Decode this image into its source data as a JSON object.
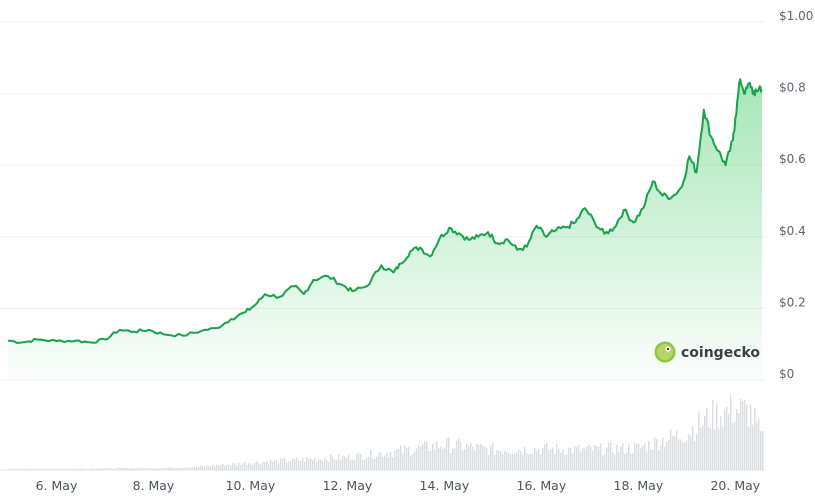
{
  "chart_data": {
    "type": "area",
    "title": "",
    "xlabel": "",
    "ylabel": "",
    "x_ticks": [
      "6. May",
      "8. May",
      "10. May",
      "12. May",
      "14. May",
      "16. May",
      "18. May",
      "20. May"
    ],
    "y_ticks": [
      "$0",
      "$0.2",
      "$0.4",
      "$0.6",
      "$0.8",
      "$1.00"
    ],
    "ylim": [
      0,
      1.0
    ],
    "x_start_day": 5,
    "x_end_day": 20.55,
    "grid": true,
    "colors": {
      "line": "#16a34a",
      "fill_top": "#5ed27d",
      "volume": "#d9dde2"
    },
    "price": [
      [
        5.0,
        0.11
      ],
      [
        5.3,
        0.105
      ],
      [
        5.6,
        0.113
      ],
      [
        6.0,
        0.109
      ],
      [
        6.4,
        0.11
      ],
      [
        6.7,
        0.105
      ],
      [
        7.0,
        0.113
      ],
      [
        7.3,
        0.14
      ],
      [
        7.6,
        0.135
      ],
      [
        7.9,
        0.14
      ],
      [
        8.2,
        0.128
      ],
      [
        8.6,
        0.124
      ],
      [
        9.0,
        0.138
      ],
      [
        9.3,
        0.145
      ],
      [
        9.6,
        0.17
      ],
      [
        9.9,
        0.19
      ],
      [
        10.1,
        0.21
      ],
      [
        10.3,
        0.24
      ],
      [
        10.6,
        0.232
      ],
      [
        10.9,
        0.262
      ],
      [
        11.1,
        0.24
      ],
      [
        11.3,
        0.28
      ],
      [
        11.6,
        0.29
      ],
      [
        11.9,
        0.265
      ],
      [
        12.1,
        0.248
      ],
      [
        12.4,
        0.262
      ],
      [
        12.7,
        0.32
      ],
      [
        12.95,
        0.3
      ],
      [
        13.1,
        0.325
      ],
      [
        13.3,
        0.36
      ],
      [
        13.5,
        0.37
      ],
      [
        13.7,
        0.345
      ],
      [
        13.9,
        0.395
      ],
      [
        14.1,
        0.425
      ],
      [
        14.3,
        0.41
      ],
      [
        14.5,
        0.392
      ],
      [
        14.7,
        0.4
      ],
      [
        14.9,
        0.413
      ],
      [
        15.1,
        0.382
      ],
      [
        15.3,
        0.393
      ],
      [
        15.5,
        0.364
      ],
      [
        15.7,
        0.372
      ],
      [
        15.9,
        0.431
      ],
      [
        16.1,
        0.4
      ],
      [
        16.25,
        0.415
      ],
      [
        16.5,
        0.426
      ],
      [
        16.7,
        0.44
      ],
      [
        16.9,
        0.48
      ],
      [
        17.1,
        0.44
      ],
      [
        17.3,
        0.408
      ],
      [
        17.5,
        0.425
      ],
      [
        17.7,
        0.475
      ],
      [
        17.9,
        0.44
      ],
      [
        18.1,
        0.48
      ],
      [
        18.3,
        0.555
      ],
      [
        18.5,
        0.515
      ],
      [
        18.7,
        0.512
      ],
      [
        18.9,
        0.54
      ],
      [
        19.05,
        0.625
      ],
      [
        19.2,
        0.58
      ],
      [
        19.35,
        0.755
      ],
      [
        19.5,
        0.68
      ],
      [
        19.65,
        0.64
      ],
      [
        19.8,
        0.6
      ],
      [
        19.95,
        0.67
      ],
      [
        20.0,
        0.73
      ],
      [
        20.1,
        0.84
      ],
      [
        20.2,
        0.8
      ],
      [
        20.3,
        0.83
      ],
      [
        20.4,
        0.795
      ],
      [
        20.5,
        0.82
      ],
      [
        20.55,
        0.812
      ]
    ],
    "volume": [
      [
        5.0,
        0.3
      ],
      [
        6.0,
        0.3
      ],
      [
        7.0,
        0.5
      ],
      [
        8.0,
        0.5
      ],
      [
        9.0,
        1.0
      ],
      [
        10.0,
        2.2
      ],
      [
        11.0,
        3.0
      ],
      [
        12.0,
        3.8
      ],
      [
        13.0,
        5.5
      ],
      [
        14.0,
        7.5
      ],
      [
        15.0,
        6.0
      ],
      [
        16.0,
        6.2
      ],
      [
        17.0,
        6.0
      ],
      [
        18.0,
        6.5
      ],
      [
        18.5,
        9.0
      ],
      [
        19.0,
        11.0
      ],
      [
        19.5,
        16.0
      ],
      [
        20.0,
        18.0
      ],
      [
        20.3,
        17.0
      ],
      [
        20.55,
        9.0
      ]
    ]
  },
  "watermark": {
    "brand": "coingecko"
  }
}
